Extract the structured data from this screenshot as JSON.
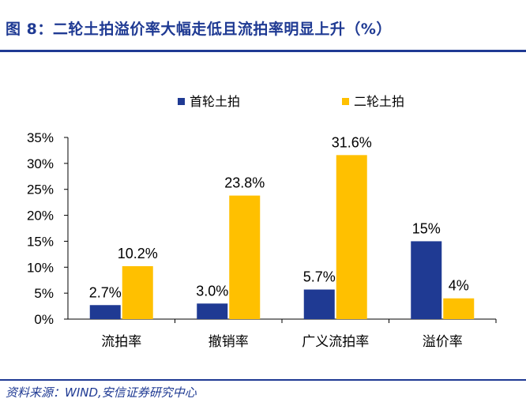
{
  "title": "图 8：二轮土拍溢价率大幅走低且流拍率明显上升（%）",
  "source": "资料来源：WIND,安信证券研究中心",
  "chart_data": {
    "type": "bar",
    "categories": [
      "流拍率",
      "撤销率",
      "广义流拍率",
      "溢价率"
    ],
    "series": [
      {
        "name": "首轮土拍",
        "values": [
          2.7,
          3.0,
          5.7,
          15
        ],
        "labels": [
          "2.7%",
          "3.0%",
          "5.7%",
          "15%"
        ],
        "color": "#1f3a93"
      },
      {
        "name": "二轮土拍",
        "values": [
          10.2,
          23.8,
          31.6,
          4
        ],
        "labels": [
          "10.2%",
          "23.8%",
          "31.6%",
          "4%"
        ],
        "color": "#ffc000"
      }
    ],
    "yticks": [
      "0%",
      "5%",
      "10%",
      "15%",
      "20%",
      "25%",
      "30%",
      "35%"
    ],
    "ylim": [
      0,
      35
    ],
    "grid": false,
    "legend_position": "top"
  }
}
